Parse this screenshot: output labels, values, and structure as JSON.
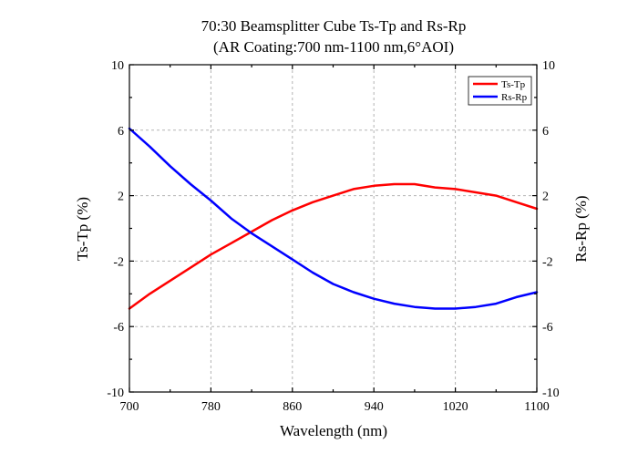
{
  "chart_data": {
    "type": "line",
    "title": "70:30 Beamsplitter Cube Ts-Tp and Rs-Rp",
    "subtitle": "(AR Coating:700 nm-1100 nm,6°AOI)",
    "xlabel": "Wavelength (nm)",
    "ylabel": "Ts-Tp (%)",
    "ylabel_right": "Rs-Rp (%)",
    "xlim": [
      700,
      1100
    ],
    "ylim": [
      -10,
      10
    ],
    "x_ticks": [
      700,
      780,
      860,
      940,
      1020,
      1100
    ],
    "x_tick_labels": [
      "700",
      "780",
      "860",
      "940",
      "1020",
      "1100"
    ],
    "y_ticks": [
      -10,
      -6,
      -2,
      2,
      6,
      10
    ],
    "y_tick_labels": [
      "-10",
      "-6",
      "-2",
      "2",
      "6",
      "10"
    ],
    "grid": true,
    "legend_position": "top-right",
    "series": [
      {
        "name": "Ts-Tp",
        "color": "#ff0000",
        "x": [
          700,
          720,
          740,
          760,
          780,
          800,
          820,
          840,
          860,
          880,
          900,
          920,
          940,
          960,
          980,
          1000,
          1020,
          1040,
          1060,
          1080,
          1100
        ],
        "y": [
          -4.9,
          -4.0,
          -3.2,
          -2.4,
          -1.6,
          -0.9,
          -0.2,
          0.5,
          1.1,
          1.6,
          2.0,
          2.4,
          2.6,
          2.7,
          2.7,
          2.5,
          2.4,
          2.2,
          2.0,
          1.6,
          1.2
        ]
      },
      {
        "name": "Rs-Rp",
        "color": "#0000ff",
        "x": [
          700,
          720,
          740,
          760,
          780,
          800,
          820,
          840,
          860,
          880,
          900,
          920,
          940,
          960,
          980,
          1000,
          1020,
          1040,
          1060,
          1080,
          1100
        ],
        "y": [
          6.1,
          5.0,
          3.8,
          2.7,
          1.7,
          0.6,
          -0.3,
          -1.1,
          -1.9,
          -2.7,
          -3.4,
          -3.9,
          -4.3,
          -4.6,
          -4.8,
          -4.9,
          -4.9,
          -4.8,
          -4.6,
          -4.2,
          -3.9
        ]
      }
    ]
  }
}
